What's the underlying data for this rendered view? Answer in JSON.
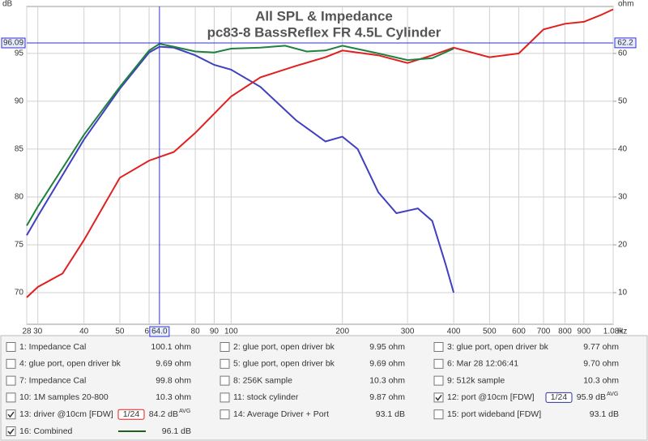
{
  "chart_data": {
    "type": "line",
    "title": "All SPL & Impedance",
    "subtitle": "pc83-8 BassReflex FR 4.5L Cylinder",
    "y_unit": "dB",
    "y2_unit": "ohm",
    "x_unit": "Hz",
    "xscale": "log",
    "grid": true,
    "xlim": [
      28,
      1080
    ],
    "ylim": [
      66.7,
      99.9
    ],
    "y2lim": [
      3.4,
      69.8
    ],
    "xticks": [
      28,
      30,
      40,
      50,
      60,
      80,
      90,
      100,
      200,
      300,
      400,
      500,
      600,
      700,
      800,
      900,
      {
        "value": 1080,
        "label": "1.08k"
      }
    ],
    "yticks": [
      70,
      75,
      80,
      85,
      90,
      95
    ],
    "y2ticks": [
      10,
      20,
      30,
      40,
      50,
      60
    ],
    "cursor": {
      "x": {
        "value": 64.0,
        "label": "64.0"
      },
      "y": 96.09,
      "y2": 62.2,
      "color": "#3030d0"
    },
    "series": [
      {
        "name": "12: port @10cm [FDW]",
        "color": "#4040c0",
        "x": [
          28,
          30,
          40,
          50,
          60,
          64,
          70,
          80,
          90,
          100,
          120,
          150,
          180,
          200,
          220,
          250,
          280,
          320,
          350,
          380,
          400
        ],
        "values": [
          76,
          78,
          86,
          91.3,
          95.1,
          95.7,
          95.6,
          94.8,
          93.8,
          93.3,
          91.5,
          88,
          85.8,
          86.3,
          85,
          80.5,
          78.3,
          78.8,
          77.5,
          73,
          70
        ]
      },
      {
        "name": "13: driver @10cm [FDW]",
        "color": "#e02020",
        "x": [
          28,
          30,
          35,
          40,
          50,
          60,
          70,
          80,
          100,
          120,
          150,
          180,
          200,
          250,
          300,
          350,
          400,
          500,
          600,
          700,
          800,
          900,
          1000,
          1080
        ],
        "values": [
          69.5,
          70.6,
          72,
          75.5,
          82,
          83.8,
          84.7,
          86.7,
          90.5,
          92.5,
          93.7,
          94.6,
          95.3,
          94.8,
          94,
          94.8,
          95.6,
          94.6,
          95,
          97.5,
          98.1,
          98.3,
          99,
          99.6
        ]
      },
      {
        "name": "16: Combined",
        "color": "#208040",
        "x": [
          28,
          30,
          40,
          50,
          60,
          64,
          70,
          80,
          90,
          100,
          120,
          140,
          160,
          180,
          200,
          250,
          300,
          350,
          400
        ],
        "values": [
          77,
          79,
          86.5,
          91.5,
          95.3,
          96,
          95.7,
          95.2,
          95.1,
          95.5,
          95.6,
          95.8,
          95.2,
          95.3,
          95.8,
          95,
          94.3,
          94.5,
          95.5
        ]
      }
    ]
  },
  "legend_panel": {
    "entries": [
      {
        "label": "1: Impedance Cal",
        "value": "100.1 ohm",
        "color": "#208040",
        "checked": false
      },
      {
        "label": "2: glue port, open driver bk",
        "value": "9.95 ohm",
        "color": "#3050a0",
        "checked": false
      },
      {
        "label": "3: glue port, open driver bk",
        "value": "9.77 ohm",
        "color": "#b020b0",
        "checked": false
      },
      {
        "label": "4: glue port, open driver bk",
        "value": "9.69 ohm",
        "color": "#208080",
        "checked": false
      },
      {
        "label": "5: glue port, open driver bk",
        "value": "9.69 ohm",
        "color": "#c08000",
        "checked": false
      },
      {
        "label": "6: Mar 28 12:06:41",
        "value": "9.70 ohm",
        "color": "#208060",
        "checked": false
      },
      {
        "label": "7: Impedance Cal",
        "value": "99.8 ohm",
        "color": "#c040a0",
        "checked": false
      },
      {
        "label": "8: 256K sample",
        "value": "10.3 ohm",
        "color": "#8040c0",
        "checked": false
      },
      {
        "label": "9: 512k sample",
        "value": "10.3 ohm",
        "color": "#2080a0",
        "checked": false
      },
      {
        "label": "10: 1M samples 20-800",
        "value": "10.3 ohm",
        "color": "#c02020",
        "checked": false
      },
      {
        "label": "11: stock cylinder",
        "value": "9.87 ohm",
        "color": "#208020",
        "checked": false
      },
      {
        "label": "12: port @10cm [FDW]",
        "value": "95.9 dB",
        "sup": "AVG",
        "smoothing": "1/24",
        "color": "#3030a0",
        "checked": true
      },
      {
        "label": "13: driver @10cm [FDW]",
        "value": "84.2 dB",
        "sup": "AVG",
        "smoothing": "1/24",
        "color": "#e02020",
        "checked": true
      },
      {
        "label": "14: Average Driver + Port",
        "value": "93.1 dB",
        "color": "#208080",
        "checked": false
      },
      {
        "label": "15: port wideband [FDW]",
        "value": "93.1 dB",
        "color": "#c09000",
        "checked": false
      },
      {
        "label": "16: Combined",
        "value": "96.1 dB",
        "color": "#206020",
        "checked": true,
        "swatch": true
      }
    ]
  }
}
